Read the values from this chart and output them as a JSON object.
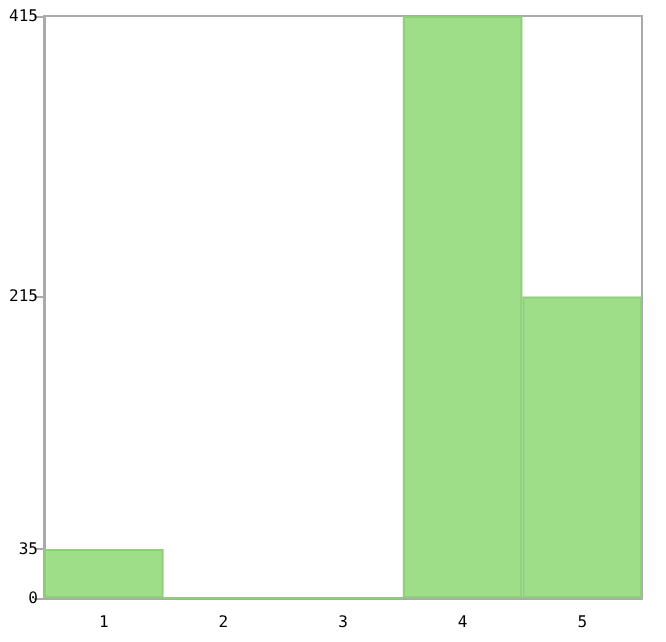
{
  "chart_data": {
    "type": "bar",
    "categories": [
      "1",
      "2",
      "3",
      "4",
      "5"
    ],
    "values": [
      35,
      0,
      0,
      415,
      215
    ],
    "color": "#9ede89",
    "ylim": [
      0,
      415
    ],
    "yticks": [
      0,
      35,
      215,
      415
    ],
    "grid": false
  }
}
